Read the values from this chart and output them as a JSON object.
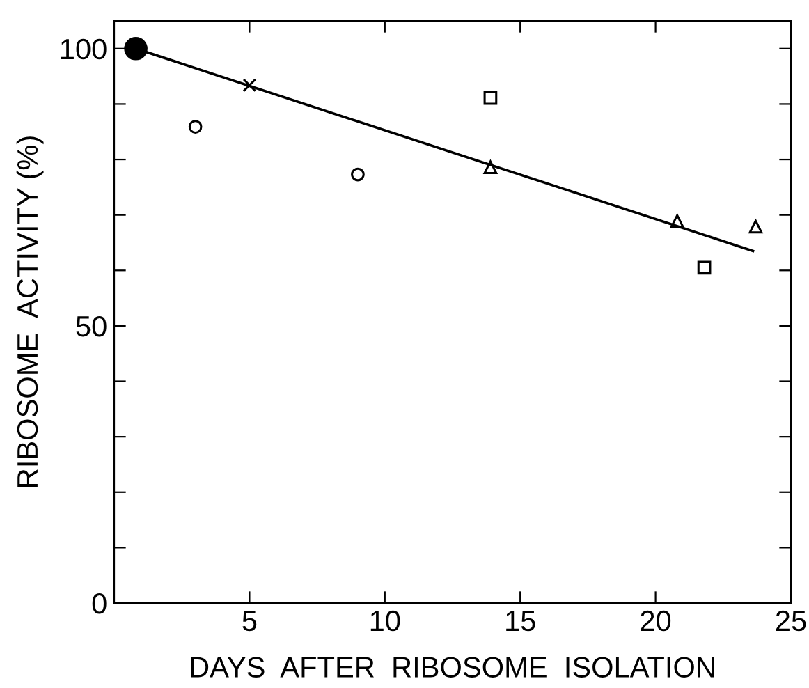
{
  "chart_data": {
    "type": "scatter",
    "xlabel": "DAYS  AFTER  RIBOSOME  ISOLATION",
    "ylabel": "RIBOSOME  ACTIVITY (%)",
    "xlim": [
      0,
      25
    ],
    "ylim": [
      0,
      105
    ],
    "xticks": [
      5,
      10,
      15,
      20,
      25
    ],
    "yticks": [
      0,
      {
        "value": 10,
        "label": null
      },
      {
        "value": 20,
        "label": null
      },
      {
        "value": 30,
        "label": null
      },
      {
        "value": 40,
        "label": null
      },
      50,
      {
        "value": 60,
        "label": null
      },
      {
        "value": 70,
        "label": null
      },
      {
        "value": 80,
        "label": null
      },
      {
        "value": 90,
        "label": null
      },
      100
    ],
    "grid": false,
    "legend": false,
    "series": [
      {
        "marker": "filled_circle",
        "color": "#000000",
        "x": [
          0.8
        ],
        "values": [
          100
        ]
      },
      {
        "marker": "cross",
        "color": "#000000",
        "x": [
          5
        ],
        "values": [
          93.4
        ]
      },
      {
        "marker": "circle",
        "color": "#000000",
        "x": [
          3,
          9
        ],
        "values": [
          85.9,
          77.3
        ]
      },
      {
        "marker": "square",
        "color": "#000000",
        "x": [
          13.9,
          21.8
        ],
        "values": [
          91.1,
          60.5
        ]
      },
      {
        "marker": "triangle",
        "color": "#000000",
        "x": [
          13.9,
          20.8,
          23.7
        ],
        "values": [
          78.6,
          68.9,
          67.9
        ]
      },
      {
        "type": "line",
        "marker": "none",
        "line_style": "solid",
        "color": "#000000",
        "x": [
          0.8,
          23.6
        ],
        "values": [
          100,
          63.5
        ]
      }
    ]
  }
}
